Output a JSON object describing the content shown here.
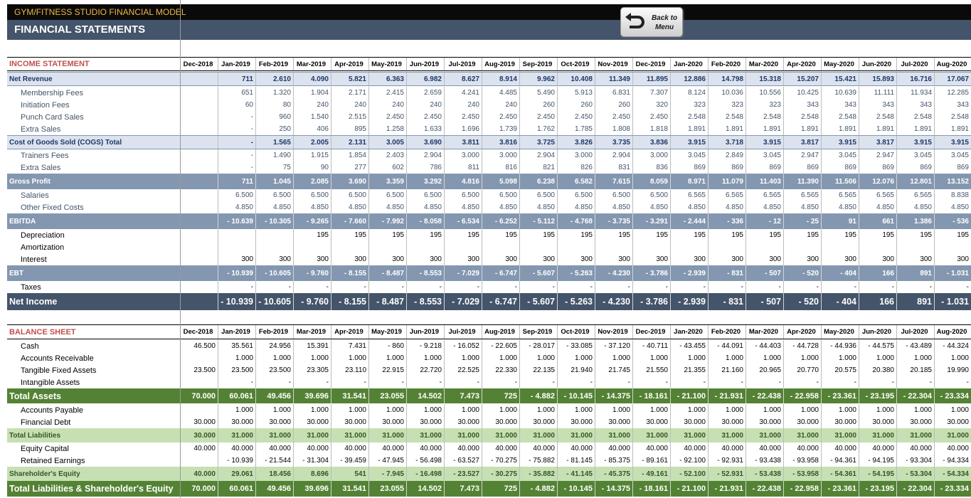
{
  "header": {
    "app_title": "GYM/FITNESS STUDIO FINANCIAL MODEL",
    "page_title": "FINANCIAL STATEMENTS",
    "back_button": "Back to\nMenu"
  },
  "colors": {
    "dark_bar": "#0a0a0a",
    "title_bar": "#44546a",
    "income_section": "#c0504d",
    "gray_band": "#8497b0",
    "dark_band": "#44546a",
    "green_band": "#548235",
    "light_green": "#c6e0b4",
    "blue_text": "#44546a",
    "navy_text": "#1f3864"
  },
  "income_statement": {
    "title": "INCOME STATEMENT",
    "columns": [
      "Dec-2018",
      "Jan-2019",
      "Feb-2019",
      "Mar-2019",
      "Apr-2019",
      "May-2019",
      "Jun-2019",
      "Jul-2019",
      "Aug-2019",
      "Sep-2019",
      "Oct-2019",
      "Nov-2019",
      "Dec-2019",
      "Jan-2020",
      "Feb-2020",
      "Mar-2020",
      "Apr-2020",
      "May-2020",
      "Jun-2020",
      "Jul-2020",
      "Aug-2020"
    ],
    "rows": [
      {
        "label": "Net Revenue",
        "values": [
          "",
          "711",
          "2.610",
          "4.090",
          "5.821",
          "6.363",
          "6.982",
          "8.627",
          "8.914",
          "9.962",
          "10.408",
          "11.349",
          "11.895",
          "12.886",
          "14.798",
          "15.318",
          "15.207",
          "15.421",
          "15.893",
          "16.716",
          "17.067"
        ]
      },
      {
        "label": "Membership Fees",
        "values": [
          "",
          "651",
          "1.320",
          "1.904",
          "2.171",
          "2.415",
          "2.659",
          "4.241",
          "4.485",
          "5.490",
          "5.913",
          "6.831",
          "7.307",
          "8.124",
          "10.036",
          "10.556",
          "10.425",
          "10.639",
          "11.111",
          "11.934",
          "12.285"
        ]
      },
      {
        "label": "Initiation Fees",
        "values": [
          "",
          "60",
          "80",
          "240",
          "240",
          "240",
          "240",
          "240",
          "240",
          "260",
          "260",
          "260",
          "320",
          "323",
          "323",
          "323",
          "343",
          "343",
          "343",
          "343",
          "343"
        ]
      },
      {
        "label": "Punch Card Sales",
        "values": [
          "",
          "-",
          "960",
          "1.540",
          "2.515",
          "2.450",
          "2.450",
          "2.450",
          "2.450",
          "2.450",
          "2.450",
          "2.450",
          "2.450",
          "2.548",
          "2.548",
          "2.548",
          "2.548",
          "2.548",
          "2.548",
          "2.548",
          "2.548"
        ]
      },
      {
        "label": "Extra Sales",
        "values": [
          "",
          "-",
          "250",
          "406",
          "895",
          "1.258",
          "1.633",
          "1.696",
          "1.739",
          "1.762",
          "1.785",
          "1.808",
          "1.818",
          "1.891",
          "1.891",
          "1.891",
          "1.891",
          "1.891",
          "1.891",
          "1.891",
          "1.891"
        ]
      },
      {
        "label": "Cost of Goods Sold (COGS) Total",
        "values": [
          "",
          "-",
          "1.565",
          "2.005",
          "2.131",
          "3.005",
          "3.690",
          "3.811",
          "3.816",
          "3.725",
          "3.826",
          "3.735",
          "3.836",
          "3.915",
          "3.718",
          "3.915",
          "3.817",
          "3.915",
          "3.817",
          "3.915",
          "3.915"
        ]
      },
      {
        "label": "Trainers Fees",
        "values": [
          "",
          "-",
          "1.490",
          "1.915",
          "1.854",
          "2.403",
          "2.904",
          "3.000",
          "3.000",
          "2.904",
          "3.000",
          "2.904",
          "3.000",
          "3.045",
          "2.849",
          "3.045",
          "2.947",
          "3.045",
          "2.947",
          "3.045",
          "3.045"
        ]
      },
      {
        "label": "Extra Sales",
        "values": [
          "",
          "-",
          "75",
          "90",
          "277",
          "602",
          "786",
          "811",
          "816",
          "821",
          "826",
          "831",
          "836",
          "869",
          "869",
          "869",
          "869",
          "869",
          "869",
          "869",
          "869"
        ]
      },
      {
        "label": "Gross Profit",
        "values": [
          "",
          "711",
          "1.045",
          "2.085",
          "3.690",
          "3.359",
          "3.292",
          "4.816",
          "5.098",
          "6.238",
          "6.582",
          "7.615",
          "8.059",
          "8.971",
          "11.079",
          "11.403",
          "11.390",
          "11.506",
          "12.076",
          "12.801",
          "13.152"
        ]
      },
      {
        "label": "Salaries",
        "values": [
          "",
          "6.500",
          "6.500",
          "6.500",
          "6.500",
          "6.500",
          "6.500",
          "6.500",
          "6.500",
          "6.500",
          "6.500",
          "6.500",
          "6.500",
          "6.565",
          "6.565",
          "6.565",
          "6.565",
          "6.565",
          "6.565",
          "6.565",
          "8.838"
        ]
      },
      {
        "label": "Other Fixed Costs",
        "values": [
          "",
          "4.850",
          "4.850",
          "4.850",
          "4.850",
          "4.850",
          "4.850",
          "4.850",
          "4.850",
          "4.850",
          "4.850",
          "4.850",
          "4.850",
          "4.850",
          "4.850",
          "4.850",
          "4.850",
          "4.850",
          "4.850",
          "4.850",
          "4.850"
        ]
      },
      {
        "label": "EBITDA",
        "values": [
          "",
          "- 10.639",
          "- 10.305",
          "- 9.265",
          "- 7.660",
          "- 7.992",
          "- 8.058",
          "- 6.534",
          "- 6.252",
          "- 5.112",
          "- 4.768",
          "- 3.735",
          "- 3.291",
          "- 2.444",
          "- 336",
          "- 12",
          "- 25",
          "91",
          "661",
          "1.386",
          "- 536"
        ]
      },
      {
        "label": "Depreciation",
        "values": [
          "",
          "",
          "",
          "195",
          "195",
          "195",
          "195",
          "195",
          "195",
          "195",
          "195",
          "195",
          "195",
          "195",
          "195",
          "195",
          "195",
          "195",
          "195",
          "195",
          "195"
        ]
      },
      {
        "label": "Amortization",
        "values": [
          "",
          "",
          "",
          "",
          "",
          "",
          "",
          "",
          "",
          "",
          "",
          "",
          "",
          "",
          "",
          "",
          "",
          "",
          "",
          "",
          ""
        ]
      },
      {
        "label": "Interest",
        "values": [
          "",
          "300",
          "300",
          "300",
          "300",
          "300",
          "300",
          "300",
          "300",
          "300",
          "300",
          "300",
          "300",
          "300",
          "300",
          "300",
          "300",
          "300",
          "300",
          "300",
          "300"
        ]
      },
      {
        "label": "EBT",
        "values": [
          "",
          "- 10.939",
          "- 10.605",
          "- 9.760",
          "- 8.155",
          "- 8.487",
          "- 8.553",
          "- 7.029",
          "- 6.747",
          "- 5.607",
          "- 5.263",
          "- 4.230",
          "- 3.786",
          "- 2.939",
          "- 831",
          "- 507",
          "- 520",
          "- 404",
          "166",
          "891",
          "- 1.031"
        ]
      },
      {
        "label": "Taxes",
        "values": [
          "",
          "-",
          "-",
          "-",
          "-",
          "-",
          "-",
          "-",
          "-",
          "-",
          "-",
          "-",
          "-",
          "-",
          "-",
          "-",
          "-",
          "-",
          "-",
          "-",
          "-"
        ]
      },
      {
        "label": "Net Income",
        "values": [
          "",
          "- 10.939",
          "- 10.605",
          "- 9.760",
          "- 8.155",
          "- 8.487",
          "- 8.553",
          "- 7.029",
          "- 6.747",
          "- 5.607",
          "- 5.263",
          "- 4.230",
          "- 3.786",
          "- 2.939",
          "- 831",
          "- 507",
          "- 520",
          "- 404",
          "166",
          "891",
          "- 1.031"
        ]
      }
    ]
  },
  "balance_sheet": {
    "title": "BALANCE SHEET",
    "columns": [
      "Dec-2018",
      "Jan-2019",
      "Feb-2019",
      "Mar-2019",
      "Apr-2019",
      "May-2019",
      "Jun-2019",
      "Jul-2019",
      "Aug-2019",
      "Sep-2019",
      "Oct-2019",
      "Nov-2019",
      "Dec-2019",
      "Jan-2020",
      "Feb-2020",
      "Mar-2020",
      "Apr-2020",
      "May-2020",
      "Jun-2020",
      "Jul-2020",
      "Aug-2020"
    ],
    "rows": [
      {
        "label": "Cash",
        "values": [
          "46.500",
          "35.561",
          "24.956",
          "15.391",
          "7.431",
          "- 860",
          "- 9.218",
          "- 16.052",
          "- 22.605",
          "- 28.017",
          "- 33.085",
          "- 37.120",
          "- 40.711",
          "- 43.455",
          "- 44.091",
          "- 44.403",
          "- 44.728",
          "- 44.936",
          "- 44.575",
          "- 43.489",
          "- 44.324"
        ]
      },
      {
        "label": "Accounts Receivable",
        "values": [
          "",
          "1.000",
          "1.000",
          "1.000",
          "1.000",
          "1.000",
          "1.000",
          "1.000",
          "1.000",
          "1.000",
          "1.000",
          "1.000",
          "1.000",
          "1.000",
          "1.000",
          "1.000",
          "1.000",
          "1.000",
          "1.000",
          "1.000",
          "1.000"
        ]
      },
      {
        "label": "Tangible Fixed Assets",
        "values": [
          "23.500",
          "23.500",
          "23.500",
          "23.305",
          "23.110",
          "22.915",
          "22.720",
          "22.525",
          "22.330",
          "22.135",
          "21.940",
          "21.745",
          "21.550",
          "21.355",
          "21.160",
          "20.965",
          "20.770",
          "20.575",
          "20.380",
          "20.185",
          "19.990"
        ]
      },
      {
        "label": "Intangible Assets",
        "values": [
          "",
          "-",
          "-",
          "-",
          "-",
          "-",
          "-",
          "-",
          "-",
          "-",
          "-",
          "-",
          "-",
          "-",
          "-",
          "-",
          "-",
          "-",
          "-",
          "-",
          "-"
        ]
      },
      {
        "label": "Total Assets",
        "values": [
          "70.000",
          "60.061",
          "49.456",
          "39.696",
          "31.541",
          "23.055",
          "14.502",
          "7.473",
          "725",
          "- 4.882",
          "- 10.145",
          "- 14.375",
          "- 18.161",
          "- 21.100",
          "- 21.931",
          "- 22.438",
          "- 22.958",
          "- 23.361",
          "- 23.195",
          "- 22.304",
          "- 23.334"
        ]
      },
      {
        "label": "Accounts Payable",
        "values": [
          "",
          "1.000",
          "1.000",
          "1.000",
          "1.000",
          "1.000",
          "1.000",
          "1.000",
          "1.000",
          "1.000",
          "1.000",
          "1.000",
          "1.000",
          "1.000",
          "1.000",
          "1.000",
          "1.000",
          "1.000",
          "1.000",
          "1.000",
          "1.000"
        ]
      },
      {
        "label": "Financial Debt",
        "values": [
          "30.000",
          "30.000",
          "30.000",
          "30.000",
          "30.000",
          "30.000",
          "30.000",
          "30.000",
          "30.000",
          "30.000",
          "30.000",
          "30.000",
          "30.000",
          "30.000",
          "30.000",
          "30.000",
          "30.000",
          "30.000",
          "30.000",
          "30.000",
          "30.000"
        ]
      },
      {
        "label": "Total Liabilities",
        "values": [
          "30.000",
          "31.000",
          "31.000",
          "31.000",
          "31.000",
          "31.000",
          "31.000",
          "31.000",
          "31.000",
          "31.000",
          "31.000",
          "31.000",
          "31.000",
          "31.000",
          "31.000",
          "31.000",
          "31.000",
          "31.000",
          "31.000",
          "31.000",
          "31.000"
        ]
      },
      {
        "label": "Equity Capital",
        "values": [
          "40.000",
          "40.000",
          "40.000",
          "40.000",
          "40.000",
          "40.000",
          "40.000",
          "40.000",
          "40.000",
          "40.000",
          "40.000",
          "40.000",
          "40.000",
          "40.000",
          "40.000",
          "40.000",
          "40.000",
          "40.000",
          "40.000",
          "40.000",
          "40.000"
        ]
      },
      {
        "label": "Retained Earnings",
        "values": [
          "",
          "- 10.939",
          "- 21.544",
          "- 31.304",
          "- 39.459",
          "- 47.945",
          "- 56.498",
          "- 63.527",
          "- 70.275",
          "- 75.882",
          "- 81.145",
          "- 85.375",
          "- 89.161",
          "- 92.100",
          "- 92.931",
          "- 93.438",
          "- 93.958",
          "- 94.361",
          "- 94.195",
          "- 93.304",
          "- 94.334"
        ]
      },
      {
        "label": "Shareholder's Equity",
        "values": [
          "40.000",
          "29.061",
          "18.456",
          "8.696",
          "541",
          "- 7.945",
          "- 16.498",
          "- 23.527",
          "- 30.275",
          "- 35.882",
          "- 41.145",
          "- 45.375",
          "- 49.161",
          "- 52.100",
          "- 52.931",
          "- 53.438",
          "- 53.958",
          "- 54.361",
          "- 54.195",
          "- 53.304",
          "- 54.334"
        ]
      },
      {
        "label": "Total Liabilities & Shareholder's Equity",
        "values": [
          "70.000",
          "60.061",
          "49.456",
          "39.696",
          "31.541",
          "23.055",
          "14.502",
          "7.473",
          "725",
          "- 4.882",
          "- 10.145",
          "- 14.375",
          "- 18.161",
          "- 21.100",
          "- 21.931",
          "- 22.438",
          "- 22.958",
          "- 23.361",
          "- 23.195",
          "- 22.304",
          "- 23.334"
        ]
      }
    ]
  }
}
